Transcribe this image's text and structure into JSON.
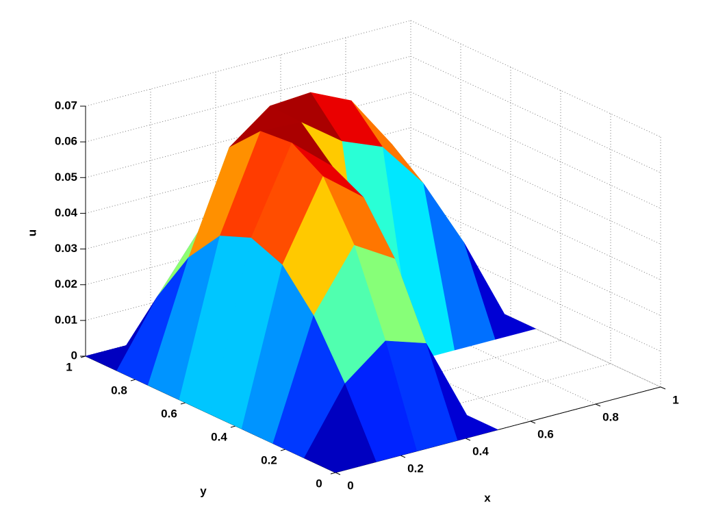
{
  "chart_data": {
    "type": "surface",
    "xlabel": "x",
    "ylabel": "y",
    "zlabel": "u",
    "x": [
      0,
      0.125,
      0.25,
      0.375,
      0.5,
      0.625,
      0.75,
      0.875,
      1
    ],
    "y": [
      0,
      0.125,
      0.25,
      0.375,
      0.5,
      0.625,
      0.75,
      0.875,
      1
    ],
    "z": [
      [
        0,
        0,
        0,
        0,
        0,
        null,
        null,
        null,
        null
      ],
      [
        0,
        0.0178,
        0.0268,
        0.0231,
        0,
        null,
        null,
        null,
        null
      ],
      [
        0,
        0.0328,
        0.0495,
        0.0427,
        0,
        null,
        null,
        null,
        null
      ],
      [
        0,
        0.0429,
        0.0647,
        0.0558,
        0,
        null,
        null,
        null,
        null
      ],
      [
        0,
        0.0464,
        0.07,
        0.0604,
        0,
        0,
        0,
        0,
        0
      ],
      [
        0,
        0.0429,
        0.0692,
        0.0687,
        0.0604,
        0.0558,
        0.0427,
        0.0231,
        0
      ],
      [
        0,
        0.0328,
        0.0606,
        0.0692,
        0.07,
        0.0647,
        0.0495,
        0.0268,
        0
      ],
      [
        0,
        0.0178,
        0.0328,
        0.0429,
        0.0464,
        0.0429,
        0.0328,
        0.0178,
        0
      ],
      [
        0,
        0,
        0,
        0,
        0,
        0,
        0,
        0,
        0
      ]
    ],
    "xlim": [
      0,
      1
    ],
    "ylim": [
      0,
      1
    ],
    "zlim": [
      0,
      0.07
    ],
    "xticks": [
      0,
      0.2,
      0.4,
      0.6,
      0.8,
      1
    ],
    "yticks": [
      0,
      0.2,
      0.4,
      0.6,
      0.8,
      1
    ],
    "zticks": [
      0,
      0.01,
      0.02,
      0.03,
      0.04,
      0.05,
      0.06,
      0.07
    ],
    "grid": true,
    "colormap": "jet"
  }
}
